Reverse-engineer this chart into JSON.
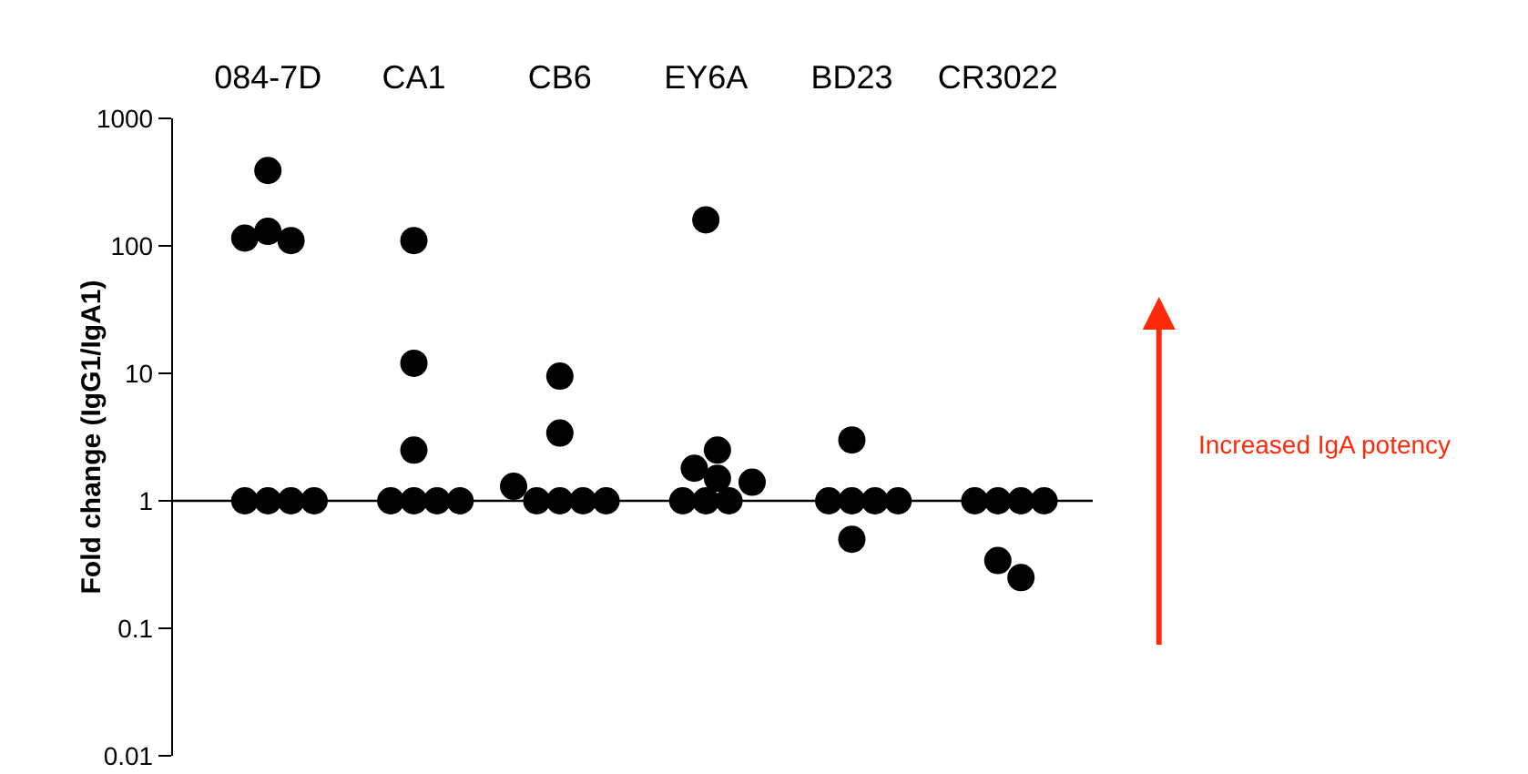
{
  "chart_data": {
    "type": "scatter",
    "ylabel": "Fold change (IgG1/IgA1)",
    "categories": [
      "084-7D",
      "CA1",
      "CB6",
      "EY6A",
      "BD23",
      "CR3022"
    ],
    "series": [
      {
        "color": "#000000",
        "x": [
          "084-7D",
          "084-7D",
          "084-7D",
          "084-7D",
          "084-7D",
          "084-7D",
          "084-7D",
          "084-7D",
          "CA1",
          "CA1",
          "CA1",
          "CA1",
          "CA1",
          "CA1",
          "CA1",
          "CB6",
          "CB6",
          "CB6",
          "CB6",
          "CB6",
          "CB6",
          "CB6",
          "EY6A",
          "EY6A",
          "EY6A",
          "EY6A",
          "EY6A",
          "EY6A",
          "EY6A",
          "EY6A",
          "BD23",
          "BD23",
          "BD23",
          "BD23",
          "BD23",
          "BD23",
          "CR3022",
          "CR3022",
          "CR3022",
          "CR3022",
          "CR3022",
          "CR3022"
        ],
        "values": [
          1,
          1,
          1,
          1,
          130,
          110,
          115,
          390,
          1,
          1,
          1,
          1,
          2.5,
          12,
          110,
          1,
          1,
          1,
          1,
          1.3,
          3.4,
          9.5,
          1,
          1,
          1,
          1.4,
          1.5,
          1.8,
          2.5,
          160,
          1,
          1,
          1,
          1,
          3,
          0.5,
          1,
          1,
          1,
          1,
          0.34,
          0.25
        ]
      }
    ],
    "log": "y",
    "ylim": [
      0.01,
      1000
    ],
    "yticks": [
      0.01,
      0.1,
      1,
      10,
      100,
      1000
    ],
    "marker": "circle",
    "ref_lines": [
      {
        "axis": "y",
        "value": 1,
        "color": "#000000"
      }
    ],
    "annotations": [
      "Increased IgA potency"
    ]
  }
}
